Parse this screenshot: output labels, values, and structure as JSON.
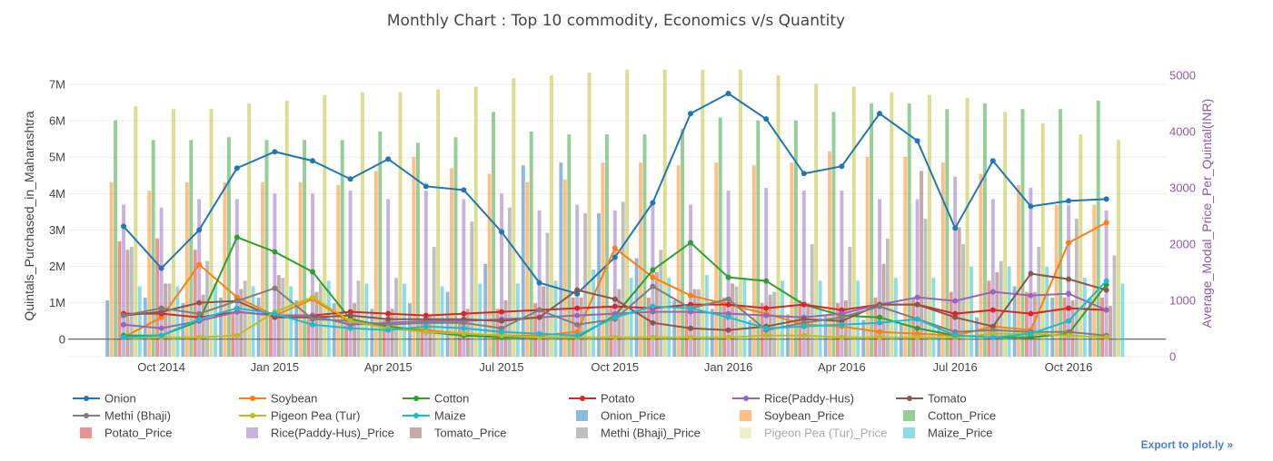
{
  "chart_data": {
    "type": "bar+line",
    "title": "Monthly Chart : Top 10 commodity, Economics v/s Quantity",
    "ylabel": "Quintals_Purchased_in_Maharashtra",
    "y2label": "Average_Modal_Price_Per_Quintal(INR)",
    "ylim": [
      -480000,
      7250000
    ],
    "y2lim": [
      0,
      5000
    ],
    "yticks": [
      {
        "v": 0,
        "label": "0"
      },
      {
        "v": 1000000,
        "label": "1M"
      },
      {
        "v": 2000000,
        "label": "2M"
      },
      {
        "v": 3000000,
        "label": "3M"
      },
      {
        "v": 4000000,
        "label": "4M"
      },
      {
        "v": 5000000,
        "label": "5M"
      },
      {
        "v": 6000000,
        "label": "6M"
      },
      {
        "v": 7000000,
        "label": "7M"
      }
    ],
    "y2ticks": [
      {
        "v": 0,
        "label": "0"
      },
      {
        "v": 1000,
        "label": "1000"
      },
      {
        "v": 2000,
        "label": "2000"
      },
      {
        "v": 3000,
        "label": "3000"
      },
      {
        "v": 4000,
        "label": "4000"
      },
      {
        "v": 5000,
        "label": "5000"
      }
    ],
    "months": [
      "Sep 2014",
      "Oct 2014",
      "Nov 2014",
      "Dec 2014",
      "Jan 2015",
      "Feb 2015",
      "Mar 2015",
      "Apr 2015",
      "May 2015",
      "Jun 2015",
      "Jul 2015",
      "Aug 2015",
      "Sep 2015",
      "Oct 2015",
      "Nov 2015",
      "Dec 2015",
      "Jan 2016",
      "Feb 2016",
      "Mar 2016",
      "Apr 2016",
      "May 2016",
      "Jun 2016",
      "Jul 2016",
      "Aug 2016",
      "Sep 2016",
      "Oct 2016",
      "Nov 2016"
    ],
    "xticks": [
      {
        "i": 1,
        "label": "Oct 2014"
      },
      {
        "i": 4,
        "label": "Jan 2015"
      },
      {
        "i": 7,
        "label": "Apr 2015"
      },
      {
        "i": 10,
        "label": "Jul 2015"
      },
      {
        "i": 13,
        "label": "Oct 2015"
      },
      {
        "i": 16,
        "label": "Jan 2016"
      },
      {
        "i": 19,
        "label": "Apr 2016"
      },
      {
        "i": 22,
        "label": "Jul 2016"
      },
      {
        "i": 25,
        "label": "Oct 2016"
      }
    ],
    "line_series": [
      {
        "name": "Onion",
        "color": "#1f77b4",
        "values": [
          3100000,
          1950000,
          3000000,
          4700000,
          5150000,
          4900000,
          4400000,
          4950000,
          4200000,
          4100000,
          2950000,
          1550000,
          1250000,
          2250000,
          3750000,
          6200000,
          6750000,
          6050000,
          4550000,
          4750000,
          6200000,
          5450000,
          3050000,
          4900000,
          3650000,
          3800000,
          3850000
        ]
      },
      {
        "name": "Soybean",
        "color": "#ff7f0e",
        "values": [
          50000,
          600000,
          2050000,
          1150000,
          650000,
          1100000,
          450000,
          350000,
          250000,
          150000,
          100000,
          100000,
          200000,
          2500000,
          1700000,
          1200000,
          950000,
          700000,
          400000,
          350000,
          200000,
          150000,
          100000,
          350000,
          250000,
          2650000,
          3200000
        ]
      },
      {
        "name": "Cotton",
        "color": "#2ca02c",
        "values": [
          100000,
          100000,
          500000,
          2800000,
          2400000,
          1850000,
          550000,
          350000,
          200000,
          100000,
          50000,
          50000,
          50000,
          650000,
          1900000,
          2650000,
          1700000,
          1600000,
          950000,
          650000,
          600000,
          300000,
          100000,
          50000,
          50000,
          150000,
          1500000
        ]
      },
      {
        "name": "Potato",
        "color": "#d62728",
        "values": [
          700000,
          700000,
          600000,
          750000,
          650000,
          650000,
          750000,
          700000,
          650000,
          700000,
          750000,
          800000,
          850000,
          900000,
          850000,
          950000,
          950000,
          850000,
          950000,
          800000,
          950000,
          950000,
          700000,
          800000,
          700000,
          850000,
          800000
        ]
      },
      {
        "name": "Rice(Paddy-Hus)",
        "color": "#9467bd",
        "values": [
          400000,
          300000,
          500000,
          750000,
          650000,
          650000,
          400000,
          450000,
          500000,
          500000,
          550000,
          600000,
          650000,
          700000,
          750000,
          750000,
          700000,
          650000,
          600000,
          700000,
          950000,
          1150000,
          1050000,
          1300000,
          1200000,
          1250000,
          800000
        ]
      },
      {
        "name": "Tomato",
        "color": "#8c564b",
        "values": [
          650000,
          750000,
          1000000,
          1050000,
          600000,
          600000,
          650000,
          550000,
          550000,
          550000,
          500000,
          600000,
          1350000,
          1100000,
          450000,
          300000,
          250000,
          350000,
          550000,
          500000,
          950000,
          950000,
          600000,
          350000,
          1800000,
          1650000,
          1350000
        ]
      },
      {
        "name": "Methi (Bhaji)",
        "color": "#7f7f7f",
        "values": [
          650000,
          850000,
          700000,
          1050000,
          1400000,
          550000,
          500000,
          400000,
          450000,
          450000,
          300000,
          800000,
          400000,
          550000,
          1450000,
          850000,
          1100000,
          250000,
          450000,
          600000,
          900000,
          550000,
          200000,
          250000,
          200000,
          200000,
          100000
        ]
      },
      {
        "name": "Pigeon Pea (Tur)",
        "color": "#bcbd22",
        "values": [
          50000,
          50000,
          50000,
          100000,
          750000,
          1150000,
          500000,
          300000,
          200000,
          150000,
          100000,
          50000,
          50000,
          50000,
          50000,
          50000,
          50000,
          100000,
          100000,
          50000,
          50000,
          50000,
          50000,
          150000,
          150000,
          100000,
          50000
        ]
      },
      {
        "name": "Maize",
        "color": "#17becf",
        "values": [
          50000,
          100000,
          550000,
          850000,
          700000,
          400000,
          300000,
          250000,
          350000,
          300000,
          200000,
          150000,
          100000,
          600000,
          900000,
          850000,
          600000,
          300000,
          350000,
          400000,
          450000,
          550000,
          100000,
          50000,
          150000,
          500000,
          1600000
        ]
      }
    ],
    "bar_series": [
      {
        "name": "Onion_Price",
        "color": "#1f77b4",
        "values": [
          1000,
          1050,
          950,
          1050,
          1050,
          1000,
          950,
          850,
          950,
          1150,
          1650,
          3400,
          3450,
          2550,
          1750,
          1000,
          850,
          650,
          750,
          750,
          650,
          600,
          550,
          700,
          1250,
          1050,
          1050
        ]
      },
      {
        "name": "Soybean_Price",
        "color": "#ff7f0e",
        "values": [
          3100,
          2950,
          3100,
          3100,
          3100,
          3100,
          3050,
          3300,
          3550,
          3350,
          3250,
          3100,
          3150,
          3450,
          3450,
          3400,
          3450,
          3400,
          3450,
          3650,
          3550,
          3550,
          3450,
          3250,
          3050,
          2700,
          2700
        ]
      },
      {
        "name": "Cotton_Price",
        "color": "#2ca02c",
        "values": [
          4200,
          3850,
          3850,
          3900,
          3850,
          3850,
          3850,
          4000,
          3800,
          3900,
          4350,
          4000,
          3950,
          3950,
          3950,
          4050,
          4250,
          4200,
          4200,
          4350,
          4500,
          4500,
          4400,
          4500,
          4400,
          4400,
          4550
        ]
      },
      {
        "name": "Potato_Price",
        "color": "#d62728",
        "values": [
          2050,
          2100,
          1900,
          800,
          750,
          750,
          650,
          650,
          600,
          650,
          850,
          950,
          1050,
          900,
          1050,
          850,
          1050,
          950,
          1000,
          950,
          1050,
          1050,
          1150,
          1350,
          1150,
          1050,
          1050
        ]
      },
      {
        "name": "Rice(Paddy-Hus)_Price",
        "color": "#9467bd",
        "values": [
          2700,
          2650,
          2800,
          2800,
          2900,
          2900,
          2950,
          2800,
          2950,
          2800,
          2900,
          2600,
          2700,
          2600,
          2700,
          2700,
          2950,
          3000,
          2950,
          2950,
          2800,
          2800,
          3200,
          2800,
          3000,
          2700,
          2600
        ]
      },
      {
        "name": "Tomato_Price",
        "color": "#8c564b",
        "values": [
          1900,
          1300,
          1100,
          1200,
          1450,
          1150,
          950,
          850,
          750,
          850,
          1000,
          1250,
          1050,
          1200,
          1500,
          1200,
          1300,
          1100,
          950,
          1000,
          1650,
          3300,
          2300,
          1500,
          1150,
          1000,
          900
        ]
      },
      {
        "name": "Methi (Bhaji)_Price",
        "color": "#7f7f7f",
        "values": [
          1950,
          1300,
          1700,
          1350,
          1400,
          1300,
          1350,
          1400,
          1950,
          2400,
          2650,
          2200,
          2550,
          2750,
          1900,
          1200,
          1250,
          1150,
          2000,
          1950,
          2100,
          2450,
          2000,
          1700,
          1950,
          2450,
          1800
        ]
      },
      {
        "name": "Pigeon Pea (Tur)_Price",
        "color": "#bcbd22",
        "values": [
          4450,
          4400,
          4400,
          4500,
          4550,
          4650,
          4700,
          4700,
          4750,
          4800,
          4950,
          5000,
          5050,
          5100,
          5100,
          5100,
          5100,
          5000,
          4850,
          4800,
          4700,
          4650,
          4600,
          4350,
          4150,
          3950,
          3850
        ]
      },
      {
        "name": "Maize_Price",
        "color": "#17becf",
        "values": [
          1250,
          1250,
          1300,
          1250,
          1250,
          1350,
          1300,
          1300,
          1250,
          1300,
          1300,
          1350,
          1550,
          1400,
          1400,
          1450,
          1400,
          1350,
          1350,
          1350,
          1400,
          1400,
          1600,
          1600,
          1600,
          1400,
          1300
        ]
      }
    ],
    "legend": [
      "Onion",
      "Soybean",
      "Cotton",
      "Potato",
      "Rice(Paddy-Hus)",
      "Tomato",
      "Methi (Bhaji)",
      "Pigeon Pea (Tur)",
      "Maize",
      "Onion_Price",
      "Soybean_Price",
      "Cotton_Price",
      "Potato_Price",
      "Rice(Paddy-Hus)_Price",
      "Tomato_Price",
      "Methi (Bhaji)_Price",
      "Pigeon Pea (Tur)_Price",
      "Maize_Price"
    ],
    "legend_hidden": [
      "Pigeon Pea (Tur)_Price"
    ]
  },
  "export_label": "Export to plot.ly »"
}
